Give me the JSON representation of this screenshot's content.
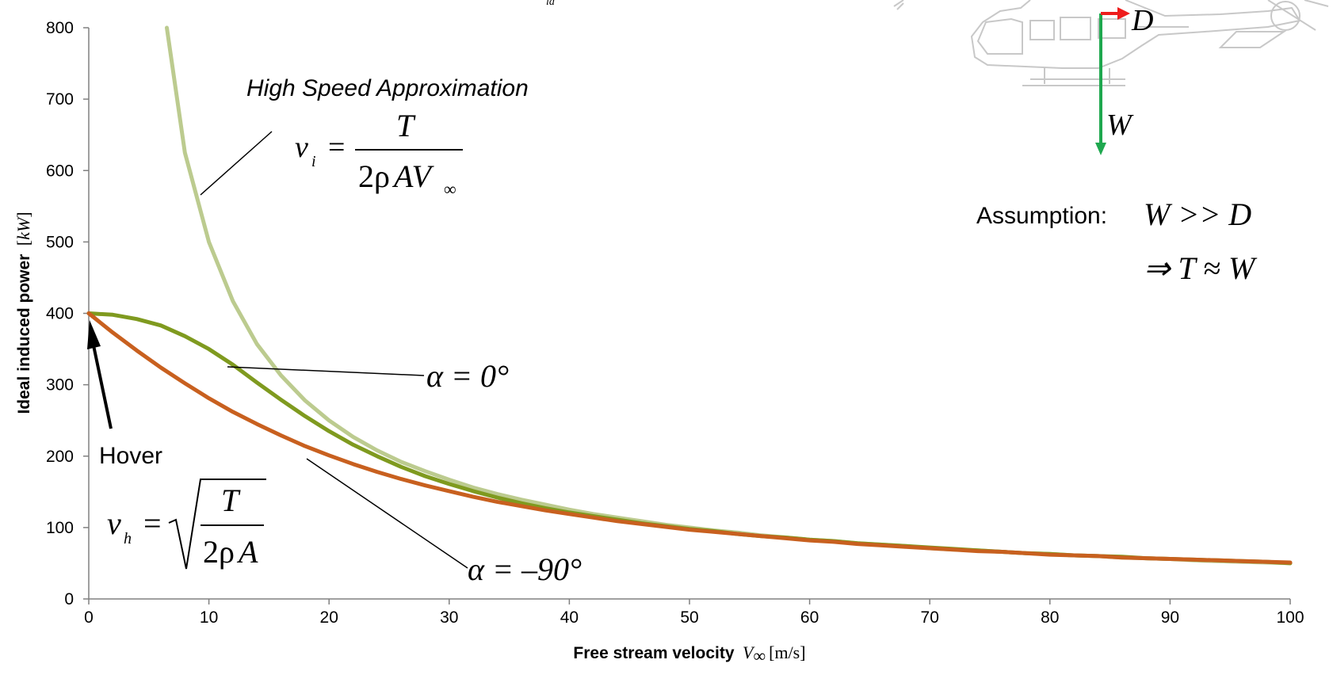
{
  "chart_data": {
    "type": "line",
    "title": "",
    "xlabel": {
      "text": "Free stream velocity",
      "symbol": "V",
      "subscript": "∞",
      "unit": "[m/s]"
    },
    "ylabel": {
      "text": "Ideal induced power",
      "unit_open": "[",
      "unit": "kW",
      "unit_close": "]"
    },
    "xlim": [
      0,
      100
    ],
    "ylim": [
      0,
      800
    ],
    "x_ticks": [
      0,
      10,
      20,
      30,
      40,
      50,
      60,
      70,
      80,
      90,
      100
    ],
    "y_ticks": [
      0,
      100,
      200,
      300,
      400,
      500,
      600,
      700,
      800
    ],
    "grid": false,
    "legend": "none",
    "x": [
      0,
      2,
      4,
      6,
      8,
      10,
      12,
      14,
      16,
      18,
      20,
      22,
      24,
      26,
      28,
      30,
      32,
      34,
      36,
      38,
      40,
      42,
      44,
      46,
      48,
      50,
      52,
      54,
      56,
      58,
      60,
      62,
      64,
      66,
      68,
      70,
      72,
      74,
      76,
      78,
      80,
      82,
      84,
      86,
      88,
      90,
      92,
      94,
      96,
      98,
      100
    ],
    "series": [
      {
        "color": "#bccb8f",
        "x": [
          6.5,
          8,
          10,
          12,
          14,
          16,
          18,
          20,
          22,
          24,
          26,
          28,
          30,
          32,
          34,
          36,
          38,
          40,
          42,
          44,
          46,
          48,
          50,
          52,
          54,
          56,
          58,
          60,
          62,
          64,
          66,
          68,
          70,
          72,
          74,
          76,
          78,
          80,
          82,
          84,
          86,
          88,
          90,
          92,
          94,
          96,
          98,
          100
        ],
        "values": [
          800,
          625,
          500,
          417,
          357,
          313,
          278,
          250,
          227,
          208,
          192,
          179,
          167,
          156,
          147,
          139,
          132,
          125,
          119,
          114,
          109,
          104,
          100,
          96,
          93,
          89,
          86,
          83,
          81,
          78,
          76,
          74,
          71,
          69,
          68,
          66,
          64,
          63,
          61,
          60,
          58,
          57,
          56,
          54,
          53,
          52,
          51,
          50
        ]
      },
      {
        "color": "#7f9a1f",
        "values": [
          400,
          398,
          392,
          383,
          368,
          350,
          328,
          303,
          279,
          256,
          235,
          216,
          200,
          185,
          172,
          161,
          151,
          142,
          134,
          127,
          121,
          116,
          111,
          106,
          102,
          98,
          95,
          91,
          88,
          86,
          83,
          81,
          78,
          76,
          74,
          72,
          70,
          68,
          66,
          64,
          63,
          61,
          60,
          59,
          57,
          56,
          55,
          54,
          53,
          52,
          50
        ]
      },
      {
        "color": "#c8601f",
        "values": [
          400,
          373,
          348,
          324,
          302,
          281,
          262,
          245,
          229,
          214,
          201,
          189,
          178,
          168,
          159,
          151,
          143,
          136,
          130,
          124,
          119,
          114,
          109,
          105,
          101,
          97,
          94,
          91,
          88,
          85,
          82,
          80,
          77,
          75,
          73,
          71,
          69,
          67,
          66,
          64,
          62,
          61,
          60,
          58,
          57,
          56,
          55,
          54,
          53,
          52,
          51
        ]
      }
    ],
    "annotations": {
      "high_speed_label": "High Speed Approximation",
      "high_speed_eq": {
        "lhs": "v",
        "lhs_sub": "i",
        "eq": "=",
        "num": "T",
        "den_a": "2ρ",
        "den_b": "AV",
        "den_sub": "∞"
      },
      "alpha0": "α = 0°",
      "alpha90": "α = –90°",
      "hover": "Hover",
      "hover_eq": {
        "lhs": "v",
        "lhs_sub": "h",
        "eq": "=",
        "num": "T",
        "den_a": "2ρ",
        "den_b": "A"
      },
      "assumption_label": "Assumption:",
      "assumption_eq1": "W >> D",
      "assumption_eq2": "⇒ T ≈ W",
      "force_d": "D",
      "force_w": "W",
      "top_fragment": "id"
    },
    "colors": {
      "drag_arrow": "#ee1c1c",
      "weight_arrow": "#1fa84f",
      "helicopter": "#c8c8c8"
    }
  }
}
